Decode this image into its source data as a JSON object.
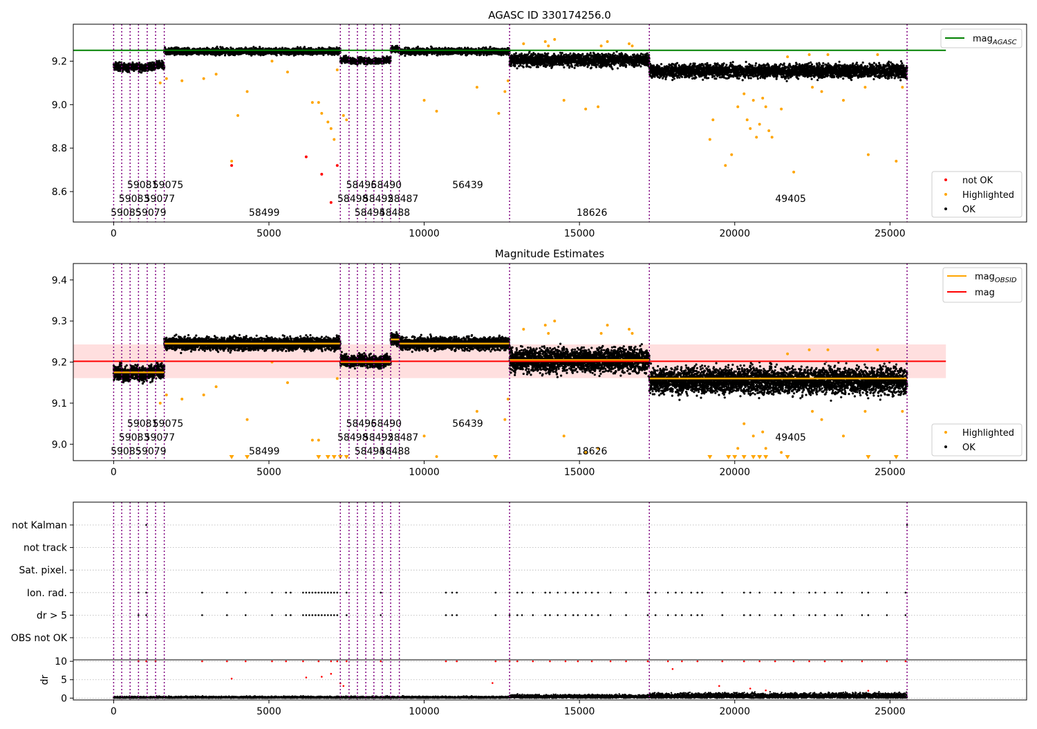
{
  "figure": {
    "title": "AGASC ID 330174256.0",
    "colors": {
      "ok": "#000000",
      "highlighted": "#ffa500",
      "not_ok": "#ff0000",
      "obs_line": "#800080",
      "mag_agasc": "#008000",
      "mag": "#ff0000",
      "mag_band": "#ffdfdf",
      "mag_obsid": "#ffa500",
      "grid": "#b0b0b0"
    }
  },
  "chart_data": [
    {
      "type": "scatter",
      "title": "AGASC ID 330174256.0",
      "xlim": [
        -1300,
        29400
      ],
      "ylim": [
        8.46,
        9.37
      ],
      "x_ticks": [
        0,
        5000,
        10000,
        15000,
        20000,
        25000
      ],
      "y_ticks": [
        8.6,
        8.8,
        9.0,
        9.2
      ],
      "grid": false,
      "legend_position": "top-right / bottom-right",
      "legend_top": [
        {
          "label": "mag",
          "subscript": "AGASC",
          "color": "#008000",
          "kind": "line"
        }
      ],
      "legend_bottom": [
        {
          "label": "not OK",
          "color": "#ff0000",
          "kind": "dot"
        },
        {
          "label": "Highlighted",
          "color": "#ffa500",
          "kind": "dot"
        },
        {
          "label": "OK",
          "color": "#000000",
          "kind": "dot"
        }
      ],
      "mag_agasc": 9.25,
      "mag_agasc_x_end": 26800,
      "obs_boundaries": [
        0,
        260,
        530,
        800,
        1080,
        1350,
        1630,
        7300,
        7580,
        7850,
        8120,
        8380,
        8650,
        8920,
        9200,
        12750,
        17250,
        25550
      ],
      "obs_segments": [
        {
          "x0": 0,
          "x1": 260,
          "level": 9.175,
          "spread": 0.018
        },
        {
          "x0": 260,
          "x1": 530,
          "level": 9.17,
          "spread": 0.018
        },
        {
          "x0": 530,
          "x1": 800,
          "level": 9.175,
          "spread": 0.018
        },
        {
          "x0": 800,
          "x1": 1080,
          "level": 9.17,
          "spread": 0.018
        },
        {
          "x0": 1080,
          "x1": 1350,
          "level": 9.175,
          "spread": 0.018
        },
        {
          "x0": 1350,
          "x1": 1630,
          "level": 9.18,
          "spread": 0.018
        },
        {
          "x0": 1630,
          "x1": 7300,
          "level": 9.245,
          "spread": 0.015
        },
        {
          "x0": 7300,
          "x1": 7580,
          "level": 9.205,
          "spread": 0.014
        },
        {
          "x0": 7580,
          "x1": 7850,
          "level": 9.2,
          "spread": 0.014
        },
        {
          "x0": 7850,
          "x1": 8120,
          "level": 9.205,
          "spread": 0.014
        },
        {
          "x0": 8120,
          "x1": 8380,
          "level": 9.2,
          "spread": 0.014
        },
        {
          "x0": 8380,
          "x1": 8650,
          "level": 9.2,
          "spread": 0.014
        },
        {
          "x0": 8650,
          "x1": 8920,
          "level": 9.205,
          "spread": 0.014
        },
        {
          "x0": 8920,
          "x1": 9200,
          "level": 9.255,
          "spread": 0.015
        },
        {
          "x0": 9200,
          "x1": 12750,
          "level": 9.245,
          "spread": 0.015
        },
        {
          "x0": 12750,
          "x1": 17250,
          "level": 9.205,
          "spread": 0.03
        },
        {
          "x0": 17250,
          "x1": 25550,
          "level": 9.155,
          "spread": 0.032
        }
      ],
      "highlighted_points": [
        [
          1500,
          9.1
        ],
        [
          1700,
          9.12
        ],
        [
          2200,
          9.11
        ],
        [
          2900,
          9.12
        ],
        [
          3300,
          9.14
        ],
        [
          3800,
          8.74
        ],
        [
          4000,
          8.95
        ],
        [
          4300,
          9.06
        ],
        [
          5100,
          9.2
        ],
        [
          5600,
          9.15
        ],
        [
          6400,
          9.01
        ],
        [
          6600,
          9.01
        ],
        [
          6700,
          8.96
        ],
        [
          6900,
          8.92
        ],
        [
          7000,
          8.89
        ],
        [
          7100,
          8.84
        ],
        [
          7200,
          9.16
        ],
        [
          7400,
          8.95
        ],
        [
          7500,
          8.93
        ],
        [
          10000,
          9.02
        ],
        [
          10400,
          8.97
        ],
        [
          11700,
          9.08
        ],
        [
          12400,
          8.96
        ],
        [
          12600,
          9.06
        ],
        [
          12700,
          9.11
        ],
        [
          13900,
          9.29
        ],
        [
          14200,
          9.3
        ],
        [
          14500,
          9.02
        ],
        [
          15200,
          8.98
        ],
        [
          15600,
          8.99
        ],
        [
          15900,
          9.29
        ],
        [
          16600,
          9.28
        ],
        [
          19200,
          8.84
        ],
        [
          19300,
          8.93
        ],
        [
          19700,
          8.72
        ],
        [
          19900,
          8.77
        ],
        [
          20100,
          8.99
        ],
        [
          20300,
          9.05
        ],
        [
          20400,
          8.93
        ],
        [
          20500,
          8.89
        ],
        [
          20600,
          9.02
        ],
        [
          20700,
          8.85
        ],
        [
          20800,
          8.91
        ],
        [
          20900,
          9.03
        ],
        [
          21000,
          8.99
        ],
        [
          21100,
          8.88
        ],
        [
          21200,
          8.85
        ],
        [
          21500,
          8.98
        ],
        [
          21700,
          9.22
        ],
        [
          21900,
          8.69
        ],
        [
          22500,
          9.08
        ],
        [
          22800,
          9.06
        ],
        [
          23500,
          9.02
        ],
        [
          24200,
          9.08
        ],
        [
          24300,
          8.77
        ],
        [
          25200,
          8.74
        ],
        [
          25400,
          9.08
        ],
        [
          13200,
          9.28
        ],
        [
          14000,
          9.27
        ],
        [
          15700,
          9.27
        ],
        [
          16700,
          9.27
        ],
        [
          22400,
          9.23
        ],
        [
          23000,
          9.23
        ],
        [
          24600,
          9.23
        ]
      ],
      "not_ok_points": [
        [
          3800,
          8.72
        ],
        [
          6200,
          8.76
        ],
        [
          6700,
          8.68
        ],
        [
          7200,
          8.72
        ],
        [
          7000,
          8.55
        ]
      ],
      "obsid_labels": [
        {
          "text": "59085",
          "x": 0,
          "row": 0
        },
        {
          "text": "59083",
          "x": 260,
          "row": 1
        },
        {
          "text": "59081",
          "x": 530,
          "row": 2
        },
        {
          "text": "59079",
          "x": 800,
          "row": 0
        },
        {
          "text": "59077",
          "x": 1080,
          "row": 1
        },
        {
          "text": "59075",
          "x": 1350,
          "row": 2
        },
        {
          "text": "58499",
          "x": 4450,
          "row": 0
        },
        {
          "text": "58498",
          "x": 7300,
          "row": 1
        },
        {
          "text": "58496",
          "x": 7580,
          "row": 2
        },
        {
          "text": "58494",
          "x": 7850,
          "row": 0
        },
        {
          "text": "58492",
          "x": 8120,
          "row": 1
        },
        {
          "text": "58490",
          "x": 8380,
          "row": 2
        },
        {
          "text": "58488",
          "x": 8650,
          "row": 0
        },
        {
          "text": "58487",
          "x": 8920,
          "row": 1
        },
        {
          "text": "56439",
          "x": 11000,
          "row": 2
        },
        {
          "text": "18626",
          "x": 15000,
          "row": 0
        },
        {
          "text": "49405",
          "x": 21400,
          "row": 1
        }
      ]
    },
    {
      "type": "scatter",
      "title": "Magnitude Estimates",
      "xlim": [
        -1300,
        29400
      ],
      "ylim": [
        8.96,
        9.44
      ],
      "x_ticks": [
        0,
        5000,
        10000,
        15000,
        20000,
        25000
      ],
      "y_ticks": [
        9.0,
        9.1,
        9.2,
        9.3,
        9.4
      ],
      "grid": false,
      "legend_top": [
        {
          "label": "mag",
          "subscript": "OBSID",
          "color": "#ffa500",
          "kind": "line"
        },
        {
          "label": "mag",
          "subscript": "",
          "color": "#ff0000",
          "kind": "line"
        }
      ],
      "legend_bottom": [
        {
          "label": "Highlighted",
          "color": "#ffa500",
          "kind": "dot"
        },
        {
          "label": "OK",
          "color": "#000000",
          "kind": "dot"
        }
      ],
      "mag": 9.202,
      "mag_band": [
        9.161,
        9.243
      ],
      "mag_x_end": 26800,
      "mag_obsid_levels": [
        {
          "x0": 0,
          "x1": 1630,
          "level": 9.175
        },
        {
          "x0": 1630,
          "x1": 7300,
          "level": 9.245
        },
        {
          "x0": 7300,
          "x1": 8920,
          "level": 9.2
        },
        {
          "x0": 8920,
          "x1": 9200,
          "level": 9.255
        },
        {
          "x0": 9200,
          "x1": 12750,
          "level": 9.245
        },
        {
          "x0": 12750,
          "x1": 17250,
          "level": 9.205
        },
        {
          "x0": 17250,
          "x1": 25550,
          "level": 9.16
        }
      ],
      "offscale_markers_x": [
        3800,
        4300,
        6600,
        6900,
        7100,
        7300,
        7500,
        12300,
        19200,
        19800,
        20000,
        20300,
        20600,
        20800,
        21000,
        21700,
        24300,
        25200
      ]
    },
    {
      "type": "scatter",
      "title": "",
      "xlim": [
        -1300,
        29400
      ],
      "x_ticks": [
        0,
        5000,
        10000,
        15000,
        20000,
        25000
      ],
      "flag_rows": [
        "not Kalman",
        "not track",
        "Sat. pixel.",
        "Ion. rad.",
        "dr > 5",
        "OBS not OK"
      ],
      "flag_points": {
        "not Kalman": [
          1050,
          25550
        ],
        "not track": [],
        "Sat. pixel.": [],
        "Ion. rad.": [
          800,
          1050,
          2850,
          3650,
          4250,
          5100,
          5550,
          5700,
          6100,
          6200,
          6300,
          6400,
          6500,
          6600,
          6700,
          6800,
          6900,
          7000,
          7100,
          7200,
          7500,
          8600,
          10700,
          10900,
          11050,
          12300,
          12750,
          13000,
          13150,
          13500,
          13900,
          14050,
          14300,
          14550,
          14800,
          14950,
          15200,
          15400,
          15600,
          16000,
          16500,
          17200,
          17450,
          17850,
          18100,
          18300,
          18600,
          18800,
          18950,
          19600,
          20300,
          20500,
          20800,
          21300,
          21500,
          21900,
          22400,
          22600,
          22900,
          23300,
          23450,
          24100,
          24300,
          24900,
          25500
        ],
        "dr > 5": [
          800,
          1050,
          2850,
          3650,
          4250,
          5100,
          5550,
          5700,
          6100,
          6200,
          6300,
          6400,
          6500,
          6600,
          6700,
          6800,
          6900,
          7000,
          7100,
          7200,
          7500,
          8600,
          10700,
          10900,
          11050,
          12300,
          12750,
          13000,
          13150,
          13500,
          13900,
          14050,
          14300,
          14550,
          14800,
          14950,
          15200,
          15400,
          15600,
          16000,
          16500,
          17200,
          17450,
          17850,
          18100,
          18300,
          18600,
          18800,
          18950,
          19600,
          20300,
          20500,
          20800,
          21300,
          21500,
          21900,
          22400,
          22600,
          22900,
          23300,
          23450,
          24100,
          24300,
          24900,
          25500
        ],
        "OBS not OK": []
      },
      "dr_ylabel": "dr",
      "dr_ylim": [
        0,
        10
      ],
      "dr_y_ticks": [
        0,
        5,
        10
      ],
      "dr_baseline_segments": [
        {
          "x0": 0,
          "x1": 12750,
          "level": 0.4
        },
        {
          "x0": 12750,
          "x1": 17250,
          "level": 0.8
        },
        {
          "x0": 17250,
          "x1": 25550,
          "level": 1.2
        }
      ],
      "dr_red_points": [
        [
          800,
          10
        ],
        [
          1050,
          10
        ],
        [
          1350,
          10
        ],
        [
          2850,
          10
        ],
        [
          3650,
          10
        ],
        [
          4250,
          10
        ],
        [
          5100,
          10
        ],
        [
          5550,
          10
        ],
        [
          6100,
          10
        ],
        [
          6600,
          10
        ],
        [
          7000,
          10
        ],
        [
          7200,
          10
        ],
        [
          7500,
          10
        ],
        [
          8600,
          10
        ],
        [
          10700,
          10
        ],
        [
          11050,
          10
        ],
        [
          12300,
          10
        ],
        [
          12750,
          10
        ],
        [
          13000,
          10
        ],
        [
          13500,
          10
        ],
        [
          14050,
          10
        ],
        [
          14550,
          10
        ],
        [
          14950,
          10
        ],
        [
          15400,
          10
        ],
        [
          16000,
          10
        ],
        [
          16500,
          10
        ],
        [
          17200,
          10
        ],
        [
          17850,
          10
        ],
        [
          18300,
          10
        ],
        [
          18800,
          10
        ],
        [
          19600,
          10
        ],
        [
          20300,
          10
        ],
        [
          20800,
          10
        ],
        [
          21300,
          10
        ],
        [
          21900,
          10
        ],
        [
          22400,
          10
        ],
        [
          22900,
          10
        ],
        [
          23450,
          10
        ],
        [
          24100,
          10
        ],
        [
          24900,
          10
        ],
        [
          25500,
          10
        ],
        [
          3800,
          5.3
        ],
        [
          6200,
          5.6
        ],
        [
          6700,
          5.8
        ],
        [
          7000,
          6.6
        ],
        [
          7300,
          4.0
        ],
        [
          7400,
          3.3
        ],
        [
          12200,
          4.1
        ],
        [
          18000,
          7.9
        ],
        [
          19500,
          3.3
        ],
        [
          20500,
          2.6
        ],
        [
          21000,
          2.1
        ],
        [
          24300,
          2.0
        ]
      ]
    }
  ]
}
